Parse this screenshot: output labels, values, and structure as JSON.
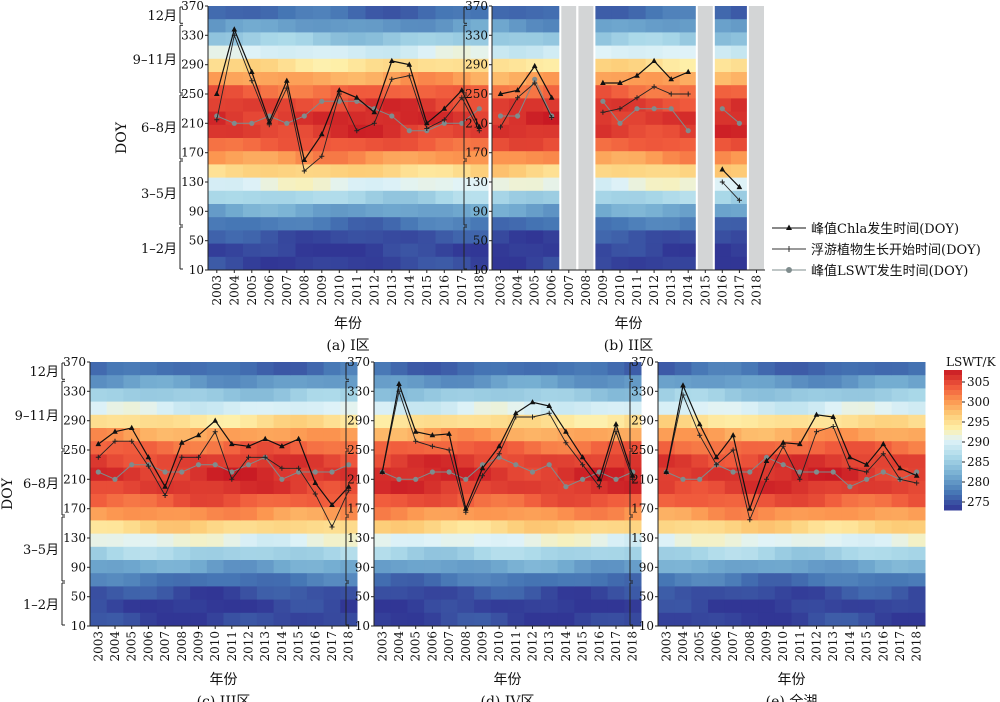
{
  "figure": {
    "ylabel": "DOY",
    "xlabel": "年份",
    "y_ticks": [
      10,
      50,
      90,
      130,
      170,
      210,
      250,
      290,
      330,
      370
    ],
    "y_months": [
      {
        "label": "1–2月",
        "from": 10,
        "to": 70
      },
      {
        "label": "3–5月",
        "from": 70,
        "to": 160
      },
      {
        "label": "6–8月",
        "from": 160,
        "to": 250
      },
      {
        "label": "9–11月",
        "from": 250,
        "to": 345
      },
      {
        "label": "12月",
        "from": 345,
        "to": 370
      }
    ],
    "colorbar": {
      "title": "LSWT/K",
      "ticks": [
        275,
        280,
        285,
        290,
        295,
        300,
        305
      ],
      "min": 273,
      "max": 308
    }
  },
  "legend": [
    {
      "label": "峰值Chla发生时间(DOY)",
      "marker": "triangle",
      "color": "#111111"
    },
    {
      "label": "浮游植物生长开始时间(DOY)",
      "marker": "plus",
      "color": "#333333"
    },
    {
      "label": "峰值LSWT发生时间(DOY)",
      "marker": "circle",
      "color": "#7f8c8d"
    }
  ],
  "chart_data": [
    {
      "type": "heatmap",
      "panel": "a",
      "caption": "(a) I区",
      "x": [
        2003,
        2004,
        2005,
        2006,
        2007,
        2008,
        2009,
        2010,
        2011,
        2012,
        2013,
        2014,
        2015,
        2016,
        2017,
        2018
      ],
      "ylim": [
        10,
        370
      ],
      "gaps": [],
      "series": [
        {
          "name": "峰值Chla发生时间(DOY)",
          "values": [
            250,
            338,
            280,
            212,
            268,
            160,
            195,
            255,
            245,
            225,
            295,
            290,
            210,
            230,
            255,
            205
          ]
        },
        {
          "name": "浮游植物生长开始时间(DOY)",
          "values": [
            215,
            330,
            268,
            208,
            258,
            145,
            165,
            250,
            200,
            210,
            270,
            275,
            203,
            215,
            245,
            200
          ]
        },
        {
          "name": "峰值LSWT发生时间(DOY)",
          "values": [
            220,
            210,
            210,
            220,
            210,
            220,
            240,
            240,
            240,
            230,
            220,
            200,
            200,
            210,
            210,
            230
          ]
        }
      ]
    },
    {
      "type": "heatmap",
      "panel": "b",
      "caption": "(b) II区",
      "x": [
        2003,
        2004,
        2005,
        2006,
        2007,
        2008,
        2009,
        2010,
        2011,
        2012,
        2013,
        2014,
        2015,
        2016,
        2017,
        2018
      ],
      "ylim": [
        10,
        370
      ],
      "gaps": [
        2007,
        2008,
        2015,
        2018
      ],
      "series": [
        {
          "name": "峰值Chla发生时间(DOY)",
          "values": [
            250,
            255,
            288,
            245,
            null,
            null,
            265,
            265,
            275,
            295,
            270,
            280,
            null,
            147,
            123,
            null
          ]
        },
        {
          "name": "浮游植物生长开始时间(DOY)",
          "values": [
            205,
            245,
            265,
            218,
            null,
            null,
            225,
            230,
            245,
            260,
            250,
            250,
            null,
            130,
            105,
            null
          ]
        },
        {
          "name": "峰值LSWT发生时间(DOY)",
          "values": [
            220,
            220,
            270,
            220,
            null,
            null,
            240,
            210,
            230,
            230,
            230,
            200,
            null,
            230,
            210,
            null
          ]
        }
      ]
    },
    {
      "type": "heatmap",
      "panel": "c",
      "caption": "(c) III区",
      "x": [
        2003,
        2004,
        2005,
        2006,
        2007,
        2008,
        2009,
        2010,
        2011,
        2012,
        2013,
        2014,
        2015,
        2016,
        2017,
        2018
      ],
      "ylim": [
        10,
        370
      ],
      "gaps": [],
      "series": [
        {
          "name": "峰值Chla发生时间(DOY)",
          "values": [
            258,
            275,
            280,
            240,
            200,
            260,
            270,
            290,
            258,
            255,
            265,
            255,
            265,
            205,
            175,
            200
          ]
        },
        {
          "name": "浮游植物生长开始时间(DOY)",
          "values": [
            240,
            262,
            262,
            228,
            188,
            240,
            240,
            275,
            210,
            240,
            240,
            225,
            225,
            190,
            145,
            195
          ]
        },
        {
          "name": "峰值LSWT发生时间(DOY)",
          "values": [
            220,
            210,
            230,
            230,
            220,
            220,
            230,
            230,
            220,
            230,
            240,
            210,
            220,
            220,
            220,
            230
          ]
        }
      ]
    },
    {
      "type": "heatmap",
      "panel": "d",
      "caption": "(d) IV区",
      "x": [
        2003,
        2004,
        2005,
        2006,
        2007,
        2008,
        2009,
        2010,
        2011,
        2012,
        2013,
        2014,
        2015,
        2016,
        2017,
        2018
      ],
      "ylim": [
        10,
        370
      ],
      "gaps": [],
      "series": [
        {
          "name": "峰值Chla发生时间(DOY)",
          "values": [
            220,
            340,
            275,
            270,
            272,
            170,
            225,
            255,
            300,
            315,
            310,
            275,
            240,
            210,
            285,
            215
          ]
        },
        {
          "name": "浮游植物生长开始时间(DOY)",
          "values": [
            220,
            330,
            262,
            255,
            250,
            165,
            215,
            245,
            295,
            295,
            300,
            260,
            230,
            200,
            275,
            210
          ]
        },
        {
          "name": "峰值LSWT发生时间(DOY)",
          "values": [
            220,
            210,
            210,
            220,
            220,
            210,
            230,
            240,
            230,
            220,
            230,
            200,
            210,
            220,
            210,
            220
          ]
        }
      ]
    },
    {
      "type": "heatmap",
      "panel": "e",
      "caption": "(e) 全湖",
      "x": [
        2003,
        2004,
        2005,
        2006,
        2007,
        2008,
        2009,
        2010,
        2011,
        2012,
        2013,
        2014,
        2015,
        2016,
        2017,
        2018
      ],
      "ylim": [
        10,
        370
      ],
      "gaps": [],
      "series": [
        {
          "name": "峰值Chla发生时间(DOY)",
          "values": [
            220,
            338,
            285,
            240,
            270,
            170,
            235,
            260,
            258,
            298,
            295,
            240,
            230,
            258,
            225,
            215
          ]
        },
        {
          "name": "浮游植物生长开始时间(DOY)",
          "values": [
            220,
            325,
            270,
            230,
            250,
            155,
            210,
            255,
            210,
            275,
            282,
            225,
            220,
            245,
            210,
            205
          ]
        },
        {
          "name": "峰值LSWT发生时间(DOY)",
          "values": [
            220,
            210,
            210,
            230,
            220,
            220,
            240,
            230,
            220,
            220,
            220,
            200,
            210,
            220,
            210,
            220
          ]
        }
      ]
    }
  ]
}
